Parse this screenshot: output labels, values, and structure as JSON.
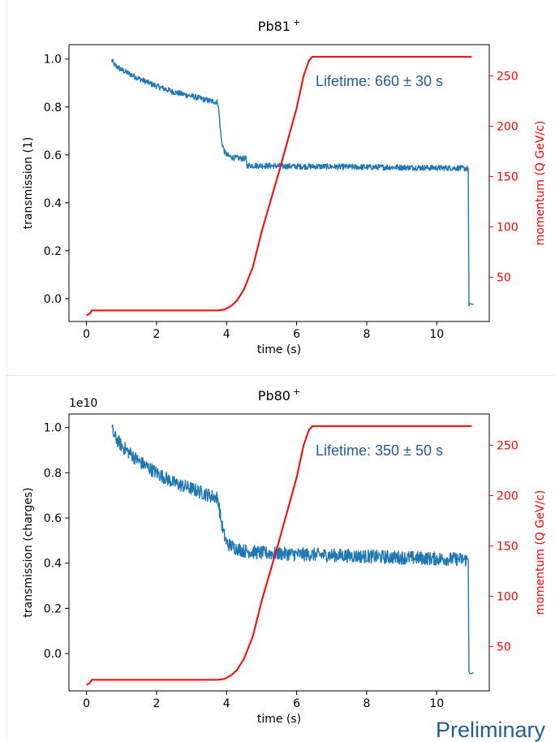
{
  "watermark": "Preliminary",
  "colors": {
    "transmission": "#1f77b4",
    "momentum": "#ff0000",
    "annotation": "#1f5c99",
    "axis": "#000000"
  },
  "chart_data": [
    {
      "type": "line",
      "title": "Pb81",
      "title_superscript": "+",
      "xlabel": "time (s)",
      "ylabel": "transmission (1)",
      "y2label": "momentum (Q GeV/c)",
      "offset_text": "",
      "annotation": "Lifetime: 660 ± 30 s",
      "xlim": [
        -0.5,
        11.5
      ],
      "ylim": [
        -0.095,
        1.06
      ],
      "y2lim": [
        6,
        281
      ],
      "xticks": [
        0,
        2,
        4,
        6,
        8,
        10
      ],
      "xtick_labels": [
        "0",
        "2",
        "4",
        "6",
        "8",
        "10"
      ],
      "yticks": [
        0.0,
        0.2,
        0.4,
        0.6,
        0.8,
        1.0
      ],
      "ytick_labels": [
        "0.0",
        "0.2",
        "0.4",
        "0.6",
        "0.8",
        "1.0"
      ],
      "y2ticks": [
        50,
        100,
        150,
        200,
        250
      ],
      "y2tick_labels": [
        "50",
        "100",
        "150",
        "200",
        "250"
      ],
      "grid": false,
      "series": [
        {
          "axis": "left",
          "x": [
            0.72,
            0.8,
            1.0,
            1.5,
            2.0,
            2.5,
            3.0,
            3.5,
            3.75,
            3.78,
            3.85,
            3.95,
            4.05,
            4.2,
            4.4,
            4.55,
            4.58,
            4.62,
            5.0,
            6.0,
            7.0,
            8.0,
            9.0,
            10.0,
            10.6,
            10.9,
            10.92,
            10.95,
            11.05
          ],
          "y": [
            0.995,
            0.975,
            0.955,
            0.918,
            0.887,
            0.862,
            0.845,
            0.826,
            0.82,
            0.78,
            0.66,
            0.61,
            0.595,
            0.588,
            0.585,
            0.584,
            0.552,
            0.556,
            0.555,
            0.552,
            0.551,
            0.549,
            0.548,
            0.546,
            0.545,
            0.543,
            -0.03,
            -0.02,
            -0.025
          ],
          "noise": 0.012
        },
        {
          "axis": "right",
          "x": [
            0.0,
            0.1,
            0.15,
            0.2,
            3.75,
            3.95,
            4.15,
            4.3,
            4.5,
            4.75,
            5.0,
            5.5,
            6.0,
            6.2,
            6.35,
            6.45,
            11.0
          ],
          "y": [
            12,
            14,
            17,
            17,
            17,
            18,
            22,
            27,
            38,
            60,
            95,
            155,
            218,
            250,
            265,
            269,
            269
          ]
        }
      ]
    },
    {
      "type": "line",
      "title": "Pb80",
      "title_superscript": "+",
      "xlabel": "time (s)",
      "ylabel": "transmission (charges)",
      "y2label": "momentum (Q GeV/c)",
      "offset_text": "1e10",
      "annotation": "Lifetime: 350 ± 50 s",
      "xlim": [
        -0.5,
        11.5
      ],
      "ylim": [
        -0.165,
        1.06
      ],
      "y2lim": [
        6,
        281
      ],
      "xticks": [
        0,
        2,
        4,
        6,
        8,
        10
      ],
      "xtick_labels": [
        "0",
        "2",
        "4",
        "6",
        "8",
        "10"
      ],
      "yticks": [
        0.0,
        0.2,
        0.4,
        0.6,
        0.8,
        1.0
      ],
      "ytick_labels": [
        "0.0",
        "0.2",
        "0.4",
        "0.6",
        "0.8",
        "1.0"
      ],
      "y2ticks": [
        50,
        100,
        150,
        200,
        250
      ],
      "y2tick_labels": [
        "50",
        "100",
        "150",
        "200",
        "250"
      ],
      "grid": false,
      "series": [
        {
          "axis": "left",
          "x": [
            0.72,
            0.8,
            1.0,
            1.5,
            2.0,
            2.5,
            3.0,
            3.5,
            3.72,
            3.76,
            3.8,
            3.9,
            4.0,
            4.2,
            4.5,
            5.0,
            6.0,
            7.0,
            8.0,
            9.0,
            10.0,
            10.6,
            10.9,
            10.92,
            10.95,
            11.05
          ],
          "y": [
            0.995,
            0.96,
            0.92,
            0.85,
            0.8,
            0.755,
            0.73,
            0.7,
            0.69,
            0.68,
            0.63,
            0.54,
            0.49,
            0.47,
            0.455,
            0.445,
            0.44,
            0.435,
            0.43,
            0.425,
            0.42,
            0.418,
            0.415,
            -0.08,
            -0.09,
            -0.085
          ],
          "noise": 0.03
        },
        {
          "axis": "right",
          "x": [
            0.0,
            0.1,
            0.15,
            0.2,
            3.75,
            3.95,
            4.15,
            4.3,
            4.5,
            4.75,
            5.0,
            5.5,
            6.0,
            6.2,
            6.35,
            6.45,
            11.0
          ],
          "y": [
            12,
            14,
            17,
            17,
            17,
            18,
            22,
            27,
            38,
            60,
            95,
            155,
            218,
            250,
            265,
            269,
            269
          ]
        }
      ]
    }
  ]
}
